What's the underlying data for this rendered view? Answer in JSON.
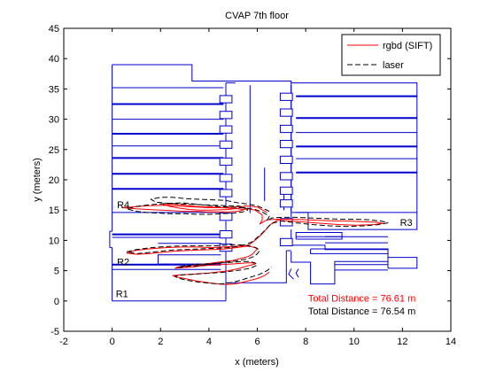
{
  "chart_data": {
    "type": "line",
    "title": "CVAP 7th floor",
    "xlabel": "x (meters)",
    "ylabel": "y (meters)",
    "xlim": [
      -2,
      14
    ],
    "ylim": [
      -5,
      45
    ],
    "x_ticks": [
      -2,
      0,
      2,
      4,
      6,
      8,
      10,
      12,
      14
    ],
    "y_ticks": [
      -5,
      0,
      5,
      10,
      15,
      20,
      25,
      30,
      35,
      40,
      45
    ],
    "grid": false,
    "legend_position": "top-right",
    "room_labels": [
      {
        "text": "R1",
        "x": 0.15,
        "y": 0.6
      },
      {
        "text": "R2",
        "x": 0.2,
        "y": 5.9
      },
      {
        "text": "R4",
        "x": 0.2,
        "y": 15.3
      },
      {
        "text": "R3",
        "x": 11.9,
        "y": 12.4
      }
    ],
    "annotations": [
      {
        "text": "Total Distance = 76.61 m",
        "x": 8.1,
        "y": -0.1,
        "color": "#ff0000"
      },
      {
        "text": "Total Distance = 76.54 m",
        "x": 8.1,
        "y": -2.2,
        "color": "#000000"
      }
    ],
    "floorplan": {
      "color": "#0000cc",
      "outlines": [
        [
          [
            0,
            39
          ],
          [
            3.3,
            39
          ],
          [
            3.3,
            36.3
          ],
          [
            7.4,
            36.3
          ],
          [
            7.4,
            36
          ],
          [
            12.6,
            36
          ],
          [
            12.6,
            11.8
          ],
          [
            8.1,
            11.8
          ],
          [
            8.1,
            14.6
          ],
          [
            7.4,
            14.6
          ]
        ],
        [
          [
            0,
            39
          ],
          [
            0,
            11.5
          ]
        ],
        [
          [
            -0.1,
            11.5
          ],
          [
            0,
            11.5
          ]
        ],
        [
          [
            -0.1,
            8.8
          ],
          [
            -0.1,
            11.5
          ]
        ],
        [
          [
            -0.1,
            8.8
          ],
          [
            0,
            8.8
          ]
        ],
        [
          [
            0,
            8.8
          ],
          [
            0,
            0
          ]
        ],
        [
          [
            0,
            0
          ],
          [
            4.7,
            0
          ]
        ],
        [
          [
            4.7,
            0
          ],
          [
            4.7,
            8.5
          ]
        ],
        [
          [
            4.7,
            3
          ],
          [
            7.2,
            3
          ],
          [
            7.2,
            8.3
          ]
        ],
        [
          [
            7.4,
            8.2
          ],
          [
            7.4,
            6.4
          ],
          [
            8.2,
            6.4
          ],
          [
            8.2,
            2.8
          ],
          [
            9.2,
            2.8
          ],
          [
            9.2,
            6.5
          ],
          [
            11.4,
            6.5
          ],
          [
            11.4,
            8.5
          ],
          [
            8.8,
            8.5
          ],
          [
            8.8,
            9.2
          ],
          [
            7.4,
            9.2
          ]
        ],
        [
          [
            9.2,
            5.1
          ],
          [
            11.4,
            5.1
          ]
        ],
        [
          [
            9.2,
            6
          ],
          [
            11.4,
            6
          ]
        ],
        [
          [
            0,
            5.2
          ],
          [
            4.5,
            5.2
          ]
        ],
        [
          [
            0,
            10.5
          ],
          [
            4.5,
            10.5
          ]
        ],
        [
          [
            1.9,
            6.1
          ],
          [
            1.9,
            7.6
          ],
          [
            4.5,
            7.6
          ]
        ],
        [
          [
            1.9,
            6.1
          ],
          [
            4.5,
            6.1
          ]
        ],
        [
          [
            1.9,
            9.5
          ],
          [
            4.5,
            9.5
          ]
        ],
        [
          [
            0,
            14.6
          ],
          [
            4.6,
            14.6
          ]
        ],
        [
          [
            7.6,
            10.2
          ],
          [
            9.5,
            10.2
          ],
          [
            9.5,
            11.3
          ],
          [
            7.6,
            11.3
          ],
          [
            7.6,
            10.2
          ]
        ],
        [
          [
            7.6,
            10.6
          ],
          [
            9.5,
            10.6
          ]
        ],
        [
          [
            8.2,
            8.6
          ],
          [
            11.4,
            8.6
          ],
          [
            11.4,
            7.8
          ],
          [
            8.2,
            7.8
          ],
          [
            8.2,
            8.6
          ]
        ],
        [
          [
            8.8,
            9.6
          ],
          [
            11.4,
            9.6
          ]
        ],
        [
          [
            8.8,
            10.6
          ],
          [
            11.4,
            10.6
          ]
        ],
        [
          [
            11.4,
            5.4
          ],
          [
            11.4,
            7.2
          ],
          [
            12.6,
            7.2
          ],
          [
            12.6,
            5.4
          ],
          [
            11.4,
            5.4
          ]
        ],
        [
          [
            7.2,
            8.3
          ],
          [
            7.4,
            8.3
          ]
        ],
        [
          [
            6.3,
            16.5
          ],
          [
            6.3,
            22
          ]
        ],
        [
          [
            7.1,
            15
          ],
          [
            7.1,
            18.2
          ]
        ],
        [
          [
            7.4,
            9.2
          ],
          [
            7.4,
            11.8
          ]
        ],
        [
          [
            4.7,
            8.5
          ],
          [
            4.7,
            13.2
          ]
        ],
        [
          [
            7.4,
            12.4
          ],
          [
            7.4,
            14.6
          ]
        ],
        [
          [
            4.7,
            15.6
          ],
          [
            4.7,
            36
          ]
        ],
        [
          [
            4.7,
            36
          ],
          [
            5.1,
            36
          ]
        ],
        [
          [
            7.4,
            14.6
          ],
          [
            7.4,
            36
          ]
        ]
      ],
      "thick_walls": [
        [
          [
            0,
            32.5
          ],
          [
            4.6,
            32.5
          ]
        ],
        [
          [
            0,
            27.6
          ],
          [
            4.6,
            27.6
          ]
        ],
        [
          [
            0,
            23.6
          ],
          [
            4.6,
            23.6
          ]
        ],
        [
          [
            0,
            21
          ],
          [
            4.6,
            21
          ]
        ],
        [
          [
            0,
            18.5
          ],
          [
            4.6,
            18.5
          ]
        ],
        [
          [
            7.6,
            33.8
          ],
          [
            12.6,
            33.8
          ]
        ],
        [
          [
            7.6,
            30.2
          ],
          [
            12.6,
            30.2
          ]
        ],
        [
          [
            7.6,
            25.5
          ],
          [
            12.6,
            25.5
          ]
        ],
        [
          [
            7.6,
            21.2
          ],
          [
            12.6,
            21.2
          ]
        ],
        [
          [
            0,
            6
          ],
          [
            4.5,
            6
          ]
        ],
        [
          [
            0,
            11
          ],
          [
            4.5,
            11
          ]
        ]
      ],
      "thin_walls": [
        [
          [
            0,
            35.2
          ],
          [
            4.6,
            35.2
          ]
        ],
        [
          [
            0,
            30
          ],
          [
            4.6,
            30
          ]
        ],
        [
          [
            0,
            25.6
          ],
          [
            4.6,
            25.6
          ]
        ],
        [
          [
            7.6,
            27.8
          ],
          [
            12.6,
            27.8
          ]
        ],
        [
          [
            7.6,
            23.5
          ],
          [
            12.6,
            23.5
          ]
        ],
        [
          [
            7.6,
            14.6
          ],
          [
            12.6,
            14.6
          ]
        ],
        [
          [
            5.7,
            35.6
          ],
          [
            5.7,
            14.5
          ]
        ],
        [
          [
            7.4,
            35.6
          ],
          [
            7.4,
            14.8
          ]
        ]
      ],
      "pillars": [
        [
          4.7,
          33.3
        ],
        [
          4.7,
          30.7
        ],
        [
          4.7,
          28.3
        ],
        [
          4.7,
          25.8
        ],
        [
          4.7,
          23
        ],
        [
          4.7,
          20.3
        ],
        [
          4.7,
          17.8
        ],
        [
          4.7,
          13.9
        ],
        [
          4.7,
          11
        ],
        [
          4.7,
          8.8
        ],
        [
          7.2,
          33.7
        ],
        [
          7.2,
          31.1
        ],
        [
          7.2,
          28.4
        ],
        [
          7.2,
          25.9
        ],
        [
          7.2,
          23.3
        ],
        [
          7.2,
          20.6
        ],
        [
          7.2,
          18.2
        ],
        [
          7.2,
          16.1
        ],
        [
          7.2,
          13
        ],
        [
          7.2,
          9.7
        ]
      ],
      "small_arcs": [
        [
          [
            7.5,
            3.6
          ],
          [
            7.3,
            4.4
          ],
          [
            7.4,
            5.3
          ]
        ],
        [
          [
            7.7,
            3.9
          ],
          [
            7.6,
            4.6
          ],
          [
            7.7,
            5.3
          ]
        ]
      ]
    },
    "series": [
      {
        "name": "rgbd (SIFT)",
        "color": "#ff0000",
        "style": "solid",
        "x": [
          6.4,
          6.0,
          5.5,
          5.2,
          4.8,
          4.1,
          3.6,
          3.2,
          2.8,
          2.4,
          2.1,
          2.5,
          3.0,
          3.5,
          4.1,
          4.6,
          5.0,
          5.3,
          5.5,
          5.4,
          5.2,
          4.8,
          4.3,
          3.9,
          3.5,
          3.0,
          2.5,
          2.0,
          1.5,
          1.0,
          0.7,
          0.4,
          0.8,
          1.4,
          2.1,
          2.6,
          3.0,
          3.5,
          4.0,
          4.5,
          4.9,
          5.2,
          5.4,
          5.6,
          5.9,
          6.2,
          6.2,
          6.1,
          6.4,
          6.8,
          7.4,
          8.0,
          8.6,
          9.2,
          9.8,
          10.3,
          10.9,
          11.2,
          10.8,
          10.1,
          9.4,
          8.7,
          8.0,
          7.4,
          6.8,
          6.5,
          6.3,
          6.1,
          5.9,
          5.7,
          5.5,
          5.1,
          4.7,
          4.2,
          3.6,
          3.0,
          2.5,
          2.0,
          1.5,
          1.0,
          0.6,
          0.9,
          1.5,
          2.2,
          2.9,
          3.5,
          4.1,
          4.6,
          5.0,
          5.4,
          5.7,
          5.9,
          6.0,
          5.9,
          5.8,
          5.6,
          5.3,
          5.0,
          4.6,
          4.2,
          3.8,
          3.4,
          3.0,
          2.7,
          2.6,
          2.9,
          3.3,
          3.7,
          4.1,
          4.5,
          4.9,
          5.3,
          5.6,
          5.8,
          5.9,
          5.6,
          5.2,
          4.8,
          4.4,
          4.0,
          3.6,
          3.2,
          2.8,
          2.5,
          2.6,
          3.0,
          3.5,
          4.0,
          4.4,
          4.8,
          5.2,
          5.6,
          6.0,
          6.3,
          6.5
        ],
        "y": [
          14.6,
          15.5,
          15.7,
          15.3,
          15.1,
          15.0,
          15.0,
          15.1,
          15.3,
          15.6,
          15.9,
          16.0,
          15.8,
          15.6,
          15.5,
          15.4,
          15.5,
          15.6,
          15.3,
          15.0,
          14.8,
          14.7,
          14.7,
          14.7,
          14.8,
          14.8,
          14.9,
          15.0,
          15.1,
          15.2,
          15.3,
          15.4,
          15.5,
          15.7,
          15.8,
          15.7,
          15.6,
          15.5,
          15.4,
          15.4,
          15.3,
          15.2,
          15.1,
          15.2,
          15.0,
          14.2,
          13.3,
          12.7,
          13.4,
          13.5,
          13.5,
          13.4,
          13.3,
          13.2,
          13.2,
          13.1,
          13.0,
          12.8,
          12.6,
          12.5,
          12.6,
          12.8,
          13.0,
          13.2,
          13.3,
          12.5,
          11.5,
          10.7,
          10.0,
          9.4,
          9.0,
          8.8,
          8.6,
          8.5,
          8.4,
          8.3,
          8.2,
          8.0,
          7.8,
          7.7,
          7.9,
          8.3,
          8.6,
          8.8,
          8.9,
          8.9,
          8.8,
          8.9,
          9.0,
          9.1,
          9.0,
          8.8,
          8.6,
          8.2,
          7.7,
          7.3,
          7.0,
          6.7,
          6.5,
          6.3,
          6.1,
          5.9,
          5.7,
          5.6,
          5.4,
          5.5,
          5.6,
          5.8,
          5.9,
          6.0,
          6.1,
          6.2,
          6.3,
          6.3,
          6.1,
          5.8,
          5.3,
          5.0,
          4.8,
          4.6,
          4.5,
          4.4,
          4.3,
          4.2,
          4.0,
          3.7,
          3.3,
          3.0,
          2.8,
          2.7,
          2.9,
          3.3,
          3.7,
          4.2,
          4.8
        ]
      },
      {
        "name": "laser",
        "color": "#000000",
        "style": "dashed",
        "x": [
          6.5,
          6.0,
          5.6,
          5.2,
          4.7,
          4.1,
          3.5,
          3.0,
          2.5,
          2.0,
          1.6,
          1.8,
          2.4,
          3.0,
          3.6,
          4.2,
          4.8,
          5.2,
          5.5,
          5.6,
          5.4,
          5.0,
          4.5,
          4.0,
          3.5,
          3.0,
          2.4,
          1.9,
          1.4,
          1.0,
          0.6,
          1.0,
          1.6,
          2.3,
          2.9,
          3.4,
          3.9,
          4.4,
          4.9,
          5.3,
          5.6,
          5.9,
          6.2,
          6.5,
          6.4,
          6.6,
          7.0,
          7.6,
          8.2,
          8.8,
          9.4,
          10.0,
          10.6,
          11.1,
          11.4,
          11.0,
          10.4,
          9.7,
          9.0,
          8.3,
          7.6,
          7.0,
          6.6,
          6.4,
          6.2,
          6.0,
          5.8,
          5.5,
          5.2,
          4.8,
          4.3,
          3.7,
          3.1,
          2.5,
          2.0,
          1.5,
          1.0,
          0.6,
          1.0,
          1.6,
          2.3,
          3.0,
          3.6,
          4.2,
          4.7,
          5.1,
          5.5,
          5.8,
          6.0,
          6.1,
          6.0,
          5.9,
          5.7,
          5.4,
          5.1,
          4.7,
          4.3,
          3.9,
          3.5,
          3.1,
          2.8,
          2.7,
          3.0,
          3.4,
          3.8,
          4.2,
          4.6,
          5.0,
          5.4,
          5.7,
          5.9,
          6.0,
          5.7,
          5.3,
          4.9,
          4.5,
          4.1,
          3.7,
          3.3,
          2.9,
          2.6,
          2.7,
          3.1,
          3.6,
          4.1,
          4.5,
          4.9,
          5.3,
          5.7,
          6.1,
          6.4,
          6.6
        ],
        "y": [
          14.8,
          15.7,
          16.0,
          16.2,
          16.6,
          16.7,
          16.8,
          16.9,
          17.1,
          17.1,
          16.8,
          16.3,
          16.1,
          16.0,
          15.9,
          15.8,
          15.7,
          15.7,
          15.4,
          15.0,
          14.7,
          14.5,
          14.4,
          14.3,
          14.3,
          14.4,
          14.4,
          14.5,
          14.6,
          14.8,
          15.2,
          15.6,
          15.9,
          16.1,
          16.2,
          16.0,
          15.8,
          15.6,
          15.5,
          15.4,
          15.3,
          15.1,
          14.7,
          14.0,
          13.2,
          13.7,
          13.8,
          13.8,
          13.7,
          13.6,
          13.5,
          13.5,
          13.4,
          13.2,
          12.9,
          12.6,
          12.4,
          12.3,
          12.4,
          12.6,
          12.9,
          13.2,
          12.8,
          12.0,
          11.2,
          10.5,
          9.8,
          9.3,
          9.0,
          8.8,
          8.7,
          8.6,
          8.5,
          8.4,
          8.2,
          8.0,
          7.8,
          8.1,
          8.5,
          8.8,
          9.0,
          9.1,
          9.1,
          9.1,
          9.2,
          9.3,
          9.2,
          9.0,
          8.7,
          8.3,
          7.8,
          7.4,
          7.1,
          6.8,
          6.6,
          6.4,
          6.2,
          6.0,
          5.8,
          5.7,
          5.5,
          5.6,
          5.8,
          6.0,
          6.1,
          6.2,
          6.3,
          6.4,
          6.5,
          6.5,
          6.3,
          5.9,
          5.4,
          5.1,
          4.9,
          4.7,
          4.6,
          4.5,
          4.4,
          4.3,
          4.1,
          3.8,
          3.4,
          3.1,
          2.9,
          2.8,
          3.0,
          3.4,
          3.9,
          4.4,
          5.0,
          5.6
        ]
      }
    ]
  }
}
